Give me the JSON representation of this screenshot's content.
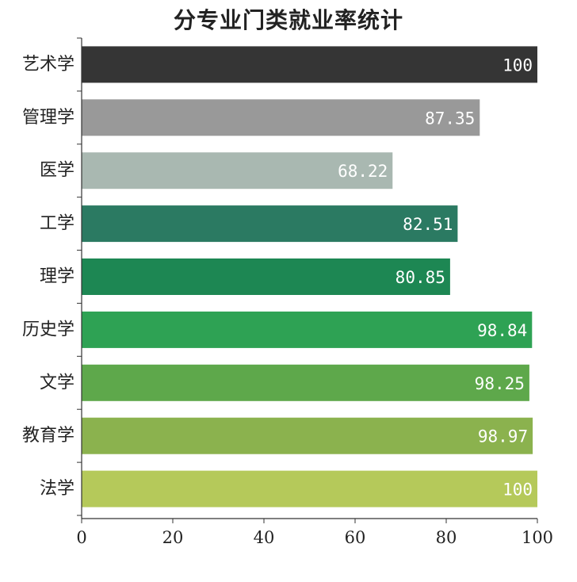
{
  "chart_data": {
    "type": "bar",
    "orientation": "horizontal",
    "title": "分专业门类就业率统计",
    "xlabel": "",
    "ylabel": "",
    "xlim": [
      0,
      100
    ],
    "xticks": [
      0,
      20,
      40,
      60,
      80,
      100
    ],
    "grid": false,
    "legend": "none",
    "categories": [
      "艺术学",
      "管理学",
      "医学",
      "工学",
      "理学",
      "历史学",
      "文学",
      "教育学",
      "法学"
    ],
    "values": [
      100,
      87.35,
      68.22,
      82.51,
      80.85,
      98.84,
      98.25,
      98.97,
      100
    ],
    "value_labels": [
      "100",
      "87.35",
      "68.22",
      "82.51",
      "80.85",
      "98.84",
      "98.25",
      "98.97",
      "100"
    ],
    "colors": [
      "#353535",
      "#999999",
      "#a9b8b1",
      "#2b7a62",
      "#1d8753",
      "#2ea254",
      "#5ea84b",
      "#8bb24e",
      "#b5c95a"
    ]
  }
}
